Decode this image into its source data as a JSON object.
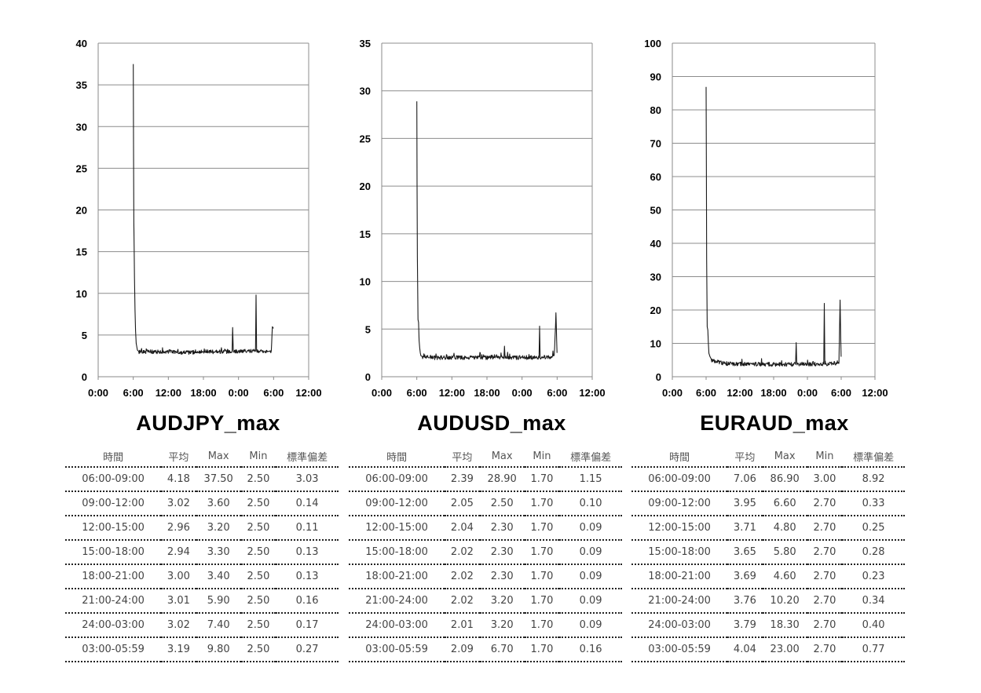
{
  "chart_data": [
    {
      "type": "line",
      "title": "AUDJPY_max",
      "xlabel": "",
      "ylabel": "",
      "x_ticks": [
        "0:00",
        "6:00",
        "12:00",
        "18:00",
        "0:00",
        "6:00",
        "12:00"
      ],
      "ylim": [
        0,
        40
      ],
      "y_ticks": [
        0,
        5,
        10,
        15,
        20,
        25,
        30,
        35,
        40
      ],
      "grid": true,
      "color": "#1a1a1a",
      "x_hours": [
        6.0,
        6.05,
        6.1,
        6.15,
        6.2,
        6.3,
        6.4,
        6.5,
        6.7,
        7.0,
        8.0,
        9.0,
        12.0,
        15.0,
        18.0,
        21.0,
        22.9,
        23.0,
        23.1,
        26.9,
        27.0,
        27.1,
        29.6,
        29.8,
        29.98
      ],
      "values": [
        37.5,
        28.0,
        18.5,
        15.5,
        12.0,
        8.0,
        5.5,
        4.0,
        3.2,
        3.0,
        3.0,
        3.0,
        3.0,
        2.9,
        3.0,
        3.0,
        3.0,
        5.9,
        3.0,
        3.1,
        9.8,
        3.0,
        3.1,
        6.0,
        5.8
      ],
      "table": {
        "headers": [
          "時間",
          "平均",
          "Max",
          "Min",
          "標準偏差"
        ],
        "rows": [
          [
            "06:00-09:00",
            "4.18",
            "37.50",
            "2.50",
            "3.03"
          ],
          [
            "09:00-12:00",
            "3.02",
            "3.60",
            "2.50",
            "0.14"
          ],
          [
            "12:00-15:00",
            "2.96",
            "3.20",
            "2.50",
            "0.11"
          ],
          [
            "15:00-18:00",
            "2.94",
            "3.30",
            "2.50",
            "0.13"
          ],
          [
            "18:00-21:00",
            "3.00",
            "3.40",
            "2.50",
            "0.13"
          ],
          [
            "21:00-24:00",
            "3.01",
            "5.90",
            "2.50",
            "0.16"
          ],
          [
            "24:00-03:00",
            "3.02",
            "7.40",
            "2.50",
            "0.17"
          ],
          [
            "03:00-05:59",
            "3.19",
            "9.80",
            "2.50",
            "0.27"
          ]
        ]
      }
    },
    {
      "type": "line",
      "title": "AUDUSD_max",
      "xlabel": "",
      "ylabel": "",
      "x_ticks": [
        "0:00",
        "6:00",
        "12:00",
        "18:00",
        "0:00",
        "6:00",
        "12:00"
      ],
      "ylim": [
        0,
        35
      ],
      "y_ticks": [
        0,
        5,
        10,
        15,
        20,
        25,
        30,
        35
      ],
      "grid": true,
      "color": "#1a1a1a",
      "x_hours": [
        6.0,
        6.05,
        6.1,
        6.2,
        6.3,
        6.4,
        6.5,
        6.6,
        6.7,
        7.0,
        8.0,
        9.0,
        12.0,
        15.0,
        18.0,
        20.9,
        21.0,
        21.1,
        26.9,
        27.0,
        27.1,
        29.5,
        29.8,
        29.98
      ],
      "values": [
        28.9,
        20.0,
        12.5,
        6.0,
        5.7,
        3.8,
        3.0,
        2.5,
        2.2,
        2.1,
        2.1,
        2.0,
        2.0,
        2.0,
        2.0,
        2.0,
        3.2,
        2.0,
        2.0,
        5.3,
        2.0,
        2.1,
        6.7,
        2.5
      ],
      "table": {
        "headers": [
          "時間",
          "平均",
          "Max",
          "Min",
          "標準偏差"
        ],
        "rows": [
          [
            "06:00-09:00",
            "2.39",
            "28.90",
            "1.70",
            "1.15"
          ],
          [
            "09:00-12:00",
            "2.05",
            "2.50",
            "1.70",
            "0.10"
          ],
          [
            "12:00-15:00",
            "2.04",
            "2.30",
            "1.70",
            "0.09"
          ],
          [
            "15:00-18:00",
            "2.02",
            "2.30",
            "1.70",
            "0.09"
          ],
          [
            "18:00-21:00",
            "2.02",
            "2.30",
            "1.70",
            "0.09"
          ],
          [
            "21:00-24:00",
            "2.02",
            "3.20",
            "1.70",
            "0.09"
          ],
          [
            "24:00-03:00",
            "2.01",
            "3.20",
            "1.70",
            "0.09"
          ],
          [
            "03:00-05:59",
            "2.09",
            "6.70",
            "1.70",
            "0.16"
          ]
        ]
      }
    },
    {
      "type": "line",
      "title": "EURAUD_max",
      "xlabel": "",
      "ylabel": "",
      "x_ticks": [
        "0:00",
        "6:00",
        "12:00",
        "18:00",
        "0:00",
        "6:00",
        "12:00"
      ],
      "ylim": [
        0,
        100
      ],
      "y_ticks": [
        0,
        10,
        20,
        30,
        40,
        50,
        60,
        70,
        80,
        90,
        100
      ],
      "grid": true,
      "color": "#1a1a1a",
      "x_hours": [
        6.0,
        6.05,
        6.1,
        6.2,
        6.3,
        6.4,
        6.5,
        6.7,
        7.0,
        7.5,
        8.0,
        9.0,
        12.0,
        15.0,
        18.0,
        21.9,
        22.0,
        22.1,
        26.9,
        27.0,
        27.1,
        29.6,
        29.8,
        29.98
      ],
      "values": [
        86.9,
        60.0,
        35.0,
        15.0,
        14.0,
        10.0,
        7.0,
        6.0,
        5.0,
        4.5,
        4.5,
        4.0,
        3.8,
        3.8,
        3.7,
        3.7,
        10.2,
        3.8,
        3.8,
        22.0,
        3.8,
        4.0,
        23.0,
        6.0
      ],
      "table": {
        "headers": [
          "時間",
          "平均",
          "Max",
          "Min",
          "標準偏差"
        ],
        "rows": [
          [
            "06:00-09:00",
            "7.06",
            "86.90",
            "3.00",
            "8.92"
          ],
          [
            "09:00-12:00",
            "3.95",
            "6.60",
            "2.70",
            "0.33"
          ],
          [
            "12:00-15:00",
            "3.71",
            "4.80",
            "2.70",
            "0.25"
          ],
          [
            "15:00-18:00",
            "3.65",
            "5.80",
            "2.70",
            "0.28"
          ],
          [
            "18:00-21:00",
            "3.69",
            "4.60",
            "2.70",
            "0.23"
          ],
          [
            "21:00-24:00",
            "3.76",
            "10.20",
            "2.70",
            "0.34"
          ],
          [
            "24:00-03:00",
            "3.79",
            "18.30",
            "2.70",
            "0.40"
          ],
          [
            "03:00-05:59",
            "4.04",
            "23.00",
            "2.70",
            "0.77"
          ]
        ]
      }
    }
  ]
}
